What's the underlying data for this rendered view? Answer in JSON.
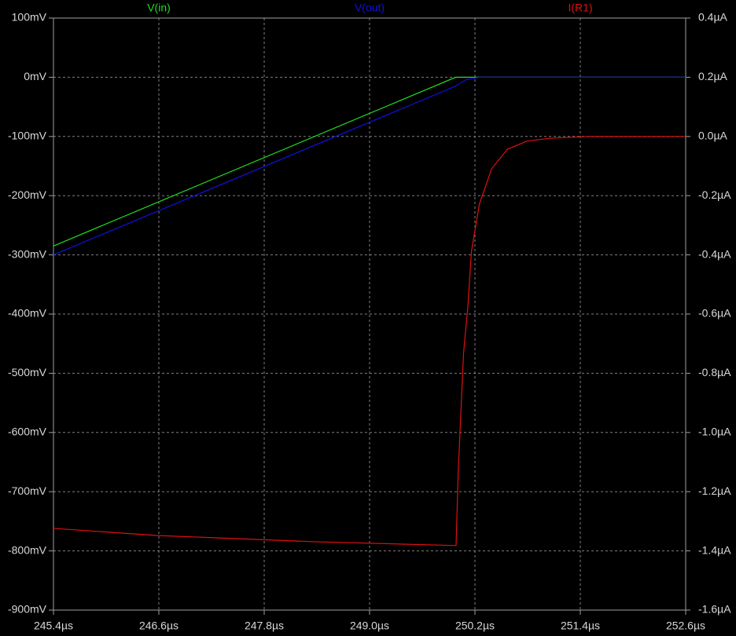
{
  "chart_data": {
    "type": "line",
    "grid": true,
    "xlim": [
      245.4,
      252.6
    ],
    "xticks": [
      {
        "value": 245.4,
        "label": "245.4µs"
      },
      {
        "value": 246.6,
        "label": "246.6µs"
      },
      {
        "value": 247.8,
        "label": "247.8µs"
      },
      {
        "value": 249.0,
        "label": "249.0µs"
      },
      {
        "value": 250.2,
        "label": "250.2µs"
      },
      {
        "value": 251.4,
        "label": "251.4µs"
      },
      {
        "value": 252.6,
        "label": "252.6µs"
      }
    ],
    "ylim": [
      -900,
      100
    ],
    "yticks": [
      {
        "value": 100,
        "label": "100mV"
      },
      {
        "value": 0,
        "label": "0mV"
      },
      {
        "value": -100,
        "label": "-100mV"
      },
      {
        "value": -200,
        "label": "-200mV"
      },
      {
        "value": -300,
        "label": "-300mV"
      },
      {
        "value": -400,
        "label": "-400mV"
      },
      {
        "value": -500,
        "label": "-500mV"
      },
      {
        "value": -600,
        "label": "-600mV"
      },
      {
        "value": -700,
        "label": "-700mV"
      },
      {
        "value": -800,
        "label": "-800mV"
      },
      {
        "value": -900,
        "label": "-900mV"
      }
    ],
    "y2lim": [
      -1.6,
      0.4
    ],
    "y2ticks": [
      {
        "value": 0.4,
        "label": "0.4µA"
      },
      {
        "value": 0.2,
        "label": "0.2µA"
      },
      {
        "value": 0,
        "label": "0.0µA"
      },
      {
        "value": -0.2,
        "label": "-0.2µA"
      },
      {
        "value": -0.4,
        "label": "-0.4µA"
      },
      {
        "value": -0.6,
        "label": "-0.6µA"
      },
      {
        "value": -0.8,
        "label": "-0.8µA"
      },
      {
        "value": -1.0,
        "label": "-1.0µA"
      },
      {
        "value": -1.2,
        "label": "-1.2µA"
      },
      {
        "value": -1.4,
        "label": "-1.4µA"
      },
      {
        "value": -1.6,
        "label": "-1.6µA"
      }
    ],
    "series": [
      {
        "name": "V(in)",
        "color": "#22dd22",
        "x": [
          245.4,
          249.98,
          252.6
        ],
        "values": [
          -285,
          0,
          0
        ]
      },
      {
        "name": "V(out)",
        "color": "#1010e0",
        "x": [
          245.4,
          249.98,
          250.1,
          250.25,
          252.6
        ],
        "values": [
          -300,
          -15,
          -4,
          0,
          0
        ]
      },
      {
        "name": "I(R1)",
        "color": "#e01010",
        "axis": "y2",
        "x": [
          245.4,
          246.58,
          248.37,
          249.985,
          250.01,
          250.07,
          250.12,
          250.16,
          250.25,
          250.39,
          250.57,
          250.79,
          251.06,
          251.51,
          252.6
        ],
        "values": [
          -1.324,
          -1.348,
          -1.369,
          -1.382,
          -1.13,
          -0.733,
          -0.573,
          -0.388,
          -0.229,
          -0.109,
          -0.043,
          -0.016,
          -0.006,
          0,
          0
        ]
      }
    ]
  }
}
